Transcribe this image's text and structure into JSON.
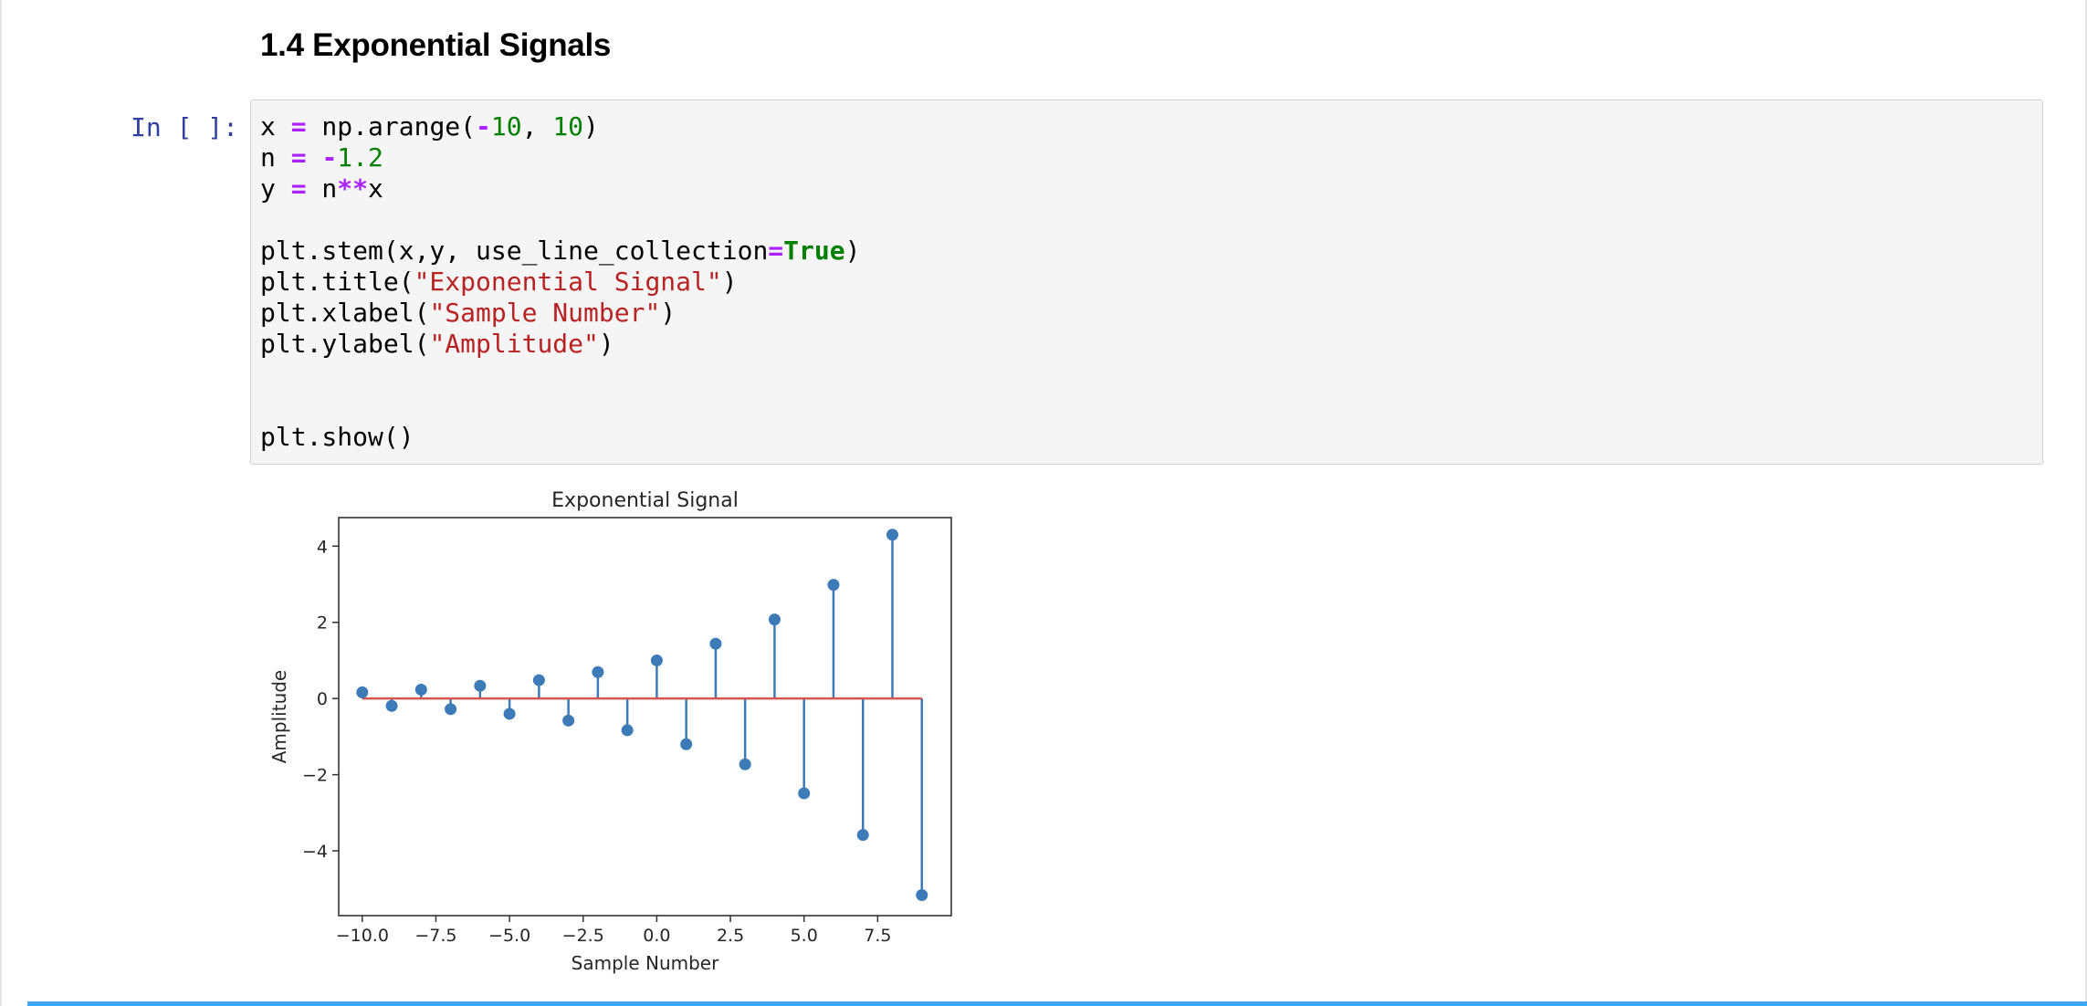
{
  "notebook": {
    "heading": "1.4 Exponential Signals",
    "cell": {
      "prompt": "In [ ]:",
      "code_lines": [
        [
          {
            "t": "x ",
            "c": "var"
          },
          {
            "t": "=",
            "c": "op"
          },
          {
            "t": " np.arange(",
            "c": "var"
          },
          {
            "t": "-",
            "c": "op"
          },
          {
            "t": "10",
            "c": "num"
          },
          {
            "t": ", ",
            "c": "var"
          },
          {
            "t": "10",
            "c": "num"
          },
          {
            "t": ")",
            "c": "var"
          }
        ],
        [
          {
            "t": "n ",
            "c": "var"
          },
          {
            "t": "=",
            "c": "op"
          },
          {
            "t": " ",
            "c": "var"
          },
          {
            "t": "-",
            "c": "op"
          },
          {
            "t": "1.2",
            "c": "num"
          }
        ],
        [
          {
            "t": "y ",
            "c": "var"
          },
          {
            "t": "=",
            "c": "op"
          },
          {
            "t": " n",
            "c": "var"
          },
          {
            "t": "**",
            "c": "op"
          },
          {
            "t": "x",
            "c": "var"
          }
        ],
        [],
        [
          {
            "t": "plt.stem(x,y, use_line_collection",
            "c": "var"
          },
          {
            "t": "=",
            "c": "op"
          },
          {
            "t": "True",
            "c": "kw"
          },
          {
            "t": ")",
            "c": "var"
          }
        ],
        [
          {
            "t": "plt.title(",
            "c": "var"
          },
          {
            "t": "\"Exponential Signal\"",
            "c": "str"
          },
          {
            "t": ")",
            "c": "var"
          }
        ],
        [
          {
            "t": "plt.xlabel(",
            "c": "var"
          },
          {
            "t": "\"Sample Number\"",
            "c": "str"
          },
          {
            "t": ")",
            "c": "var"
          }
        ],
        [
          {
            "t": "plt.ylabel(",
            "c": "var"
          },
          {
            "t": "\"Amplitude\"",
            "c": "str"
          },
          {
            "t": ")",
            "c": "var"
          }
        ],
        [],
        [],
        [
          {
            "t": "plt.show()",
            "c": "var"
          }
        ]
      ]
    }
  },
  "colors": {
    "stem": "#3d7ab8",
    "baseline": "#d9534f",
    "prompt": "#303f9f",
    "cell_bg": "#f5f5f5",
    "cell_border": "#cfcfcf",
    "selection_bar": "#42a5f5"
  },
  "chart_data": {
    "type": "stem",
    "title": "Exponential Signal",
    "xlabel": "Sample Number",
    "ylabel": "Amplitude",
    "x": [
      -10,
      -9,
      -8,
      -7,
      -6,
      -5,
      -4,
      -3,
      -2,
      -1,
      0,
      1,
      2,
      3,
      4,
      5,
      6,
      7,
      8,
      9
    ],
    "y": [
      0.162,
      -0.194,
      0.233,
      -0.279,
      0.335,
      -0.402,
      0.482,
      -0.579,
      0.694,
      -0.833,
      1.0,
      -1.2,
      1.44,
      -1.728,
      2.074,
      -2.488,
      2.986,
      -3.583,
      4.3,
      -5.16
    ],
    "xlim": [
      -10.8,
      10.0
    ],
    "ylim": [
      -5.7,
      4.75
    ],
    "xticks": [
      -10.0,
      -7.5,
      -5.0,
      -2.5,
      0.0,
      2.5,
      5.0,
      7.5
    ],
    "xtick_labels": [
      "−10.0",
      "−7.5",
      "−5.0",
      "−2.5",
      "0.0",
      "2.5",
      "5.0",
      "7.5"
    ],
    "yticks": [
      -4,
      -2,
      0,
      2,
      4
    ],
    "ytick_labels": [
      "−4",
      "−2",
      "0",
      "2",
      "4"
    ],
    "baseline": 0,
    "grid": false
  }
}
